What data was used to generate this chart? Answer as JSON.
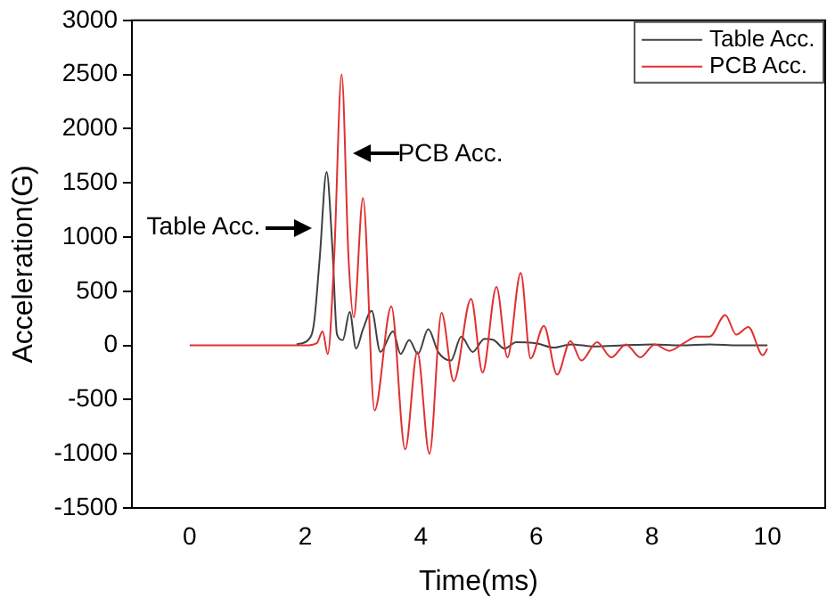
{
  "chart_data": {
    "type": "line",
    "xlabel": "Time(ms)",
    "ylabel": "Acceleration(G)",
    "xlim": [
      -1,
      11
    ],
    "xticks": [
      0,
      2,
      4,
      6,
      8,
      10
    ],
    "ylim": [
      -1500,
      3000
    ],
    "yticks": [
      -1500,
      -1000,
      -500,
      0,
      500,
      1000,
      1500,
      2000,
      2500,
      3000
    ],
    "grid": false,
    "legend": "top right",
    "marker": "none",
    "line_style": "solid",
    "annotations": [
      {
        "text": "Table Acc.",
        "x": 2.15,
        "y": 1090
      },
      {
        "text": "PCB Acc.",
        "x": 2.8,
        "y": 1765
      }
    ],
    "series": [
      {
        "name": "Table Acc.",
        "color": "#404040",
        "x": [
          1.85,
          2.05,
          2.15,
          2.25,
          2.37,
          2.47,
          2.55,
          2.65,
          2.77,
          2.88,
          3.0,
          3.15,
          3.3,
          3.52,
          3.65,
          3.8,
          3.95,
          4.13,
          4.3,
          4.52,
          4.7,
          4.9,
          5.1,
          5.26,
          5.45,
          5.65,
          6.0,
          6.3,
          6.6,
          7.0,
          7.5,
          8.0,
          8.5,
          9.0,
          9.5,
          10
        ],
        "values": [
          10,
          50,
          200,
          800,
          1600,
          900,
          100,
          50,
          310,
          -30,
          150,
          320,
          -60,
          130,
          -80,
          50,
          -80,
          150,
          -60,
          -140,
          80,
          -60,
          60,
          50,
          -30,
          30,
          20,
          -20,
          10,
          -10,
          0,
          10,
          0,
          10,
          0,
          0
        ]
      },
      {
        "name": "PCB Acc.",
        "color": "#e03030",
        "x": [
          0,
          0.5,
          1,
          1.5,
          2.0,
          2.2,
          2.3,
          2.39,
          2.5,
          2.63,
          2.75,
          2.84,
          3.0,
          3.2,
          3.49,
          3.73,
          3.94,
          4.15,
          4.36,
          4.57,
          4.87,
          5.07,
          5.31,
          5.5,
          5.73,
          5.9,
          6.13,
          6.36,
          6.59,
          6.78,
          7.05,
          7.3,
          7.55,
          7.8,
          8.05,
          8.3,
          8.55,
          8.78,
          9.0,
          9.27,
          9.46,
          9.67,
          9.92,
          10
        ],
        "values": [
          0,
          0,
          0,
          0,
          0,
          20,
          130,
          -80,
          800,
          2500,
          800,
          260,
          1360,
          -600,
          360,
          -960,
          -60,
          -1000,
          300,
          -330,
          430,
          -250,
          540,
          -110,
          670,
          -120,
          180,
          -270,
          40,
          -140,
          30,
          -110,
          10,
          -110,
          10,
          -50,
          20,
          80,
          80,
          280,
          100,
          170,
          -90,
          -30
        ]
      }
    ]
  }
}
